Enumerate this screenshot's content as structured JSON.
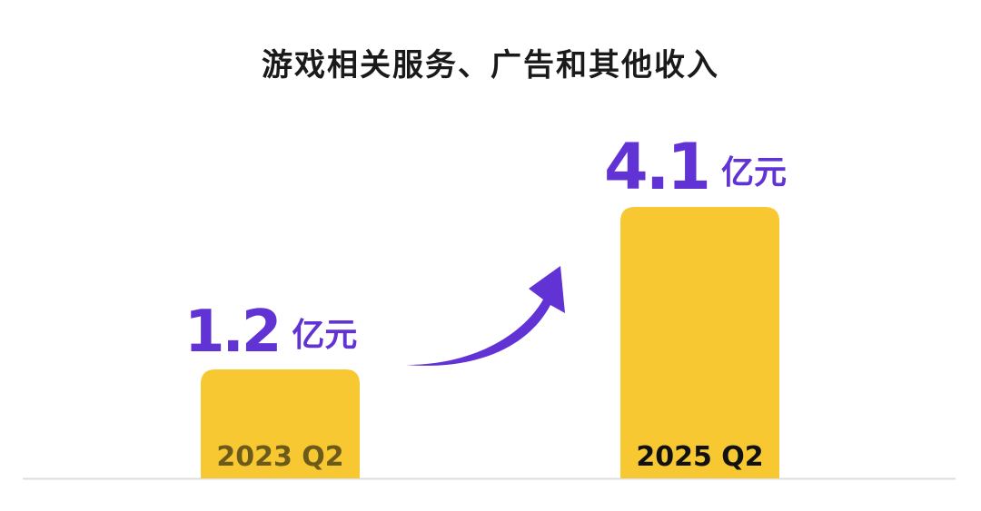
{
  "chart_data": {
    "type": "bar",
    "title": "游戏相关服务、广告和其他收入",
    "categories": [
      "2023 Q2",
      "2025 Q2"
    ],
    "values": [
      1.2,
      4.1
    ],
    "value_labels": [
      "1.2",
      "4.1"
    ],
    "unit": "亿元",
    "xlabel": "",
    "ylabel": "",
    "grid": false,
    "annotation": "upward-arrow-icon",
    "colors": {
      "bar": "#f7c832",
      "value": "#6233d4",
      "arrow": "#6233d4",
      "baseline": "#dddddd",
      "label_first": "#6b5a1a",
      "label_last": "#111111"
    }
  }
}
